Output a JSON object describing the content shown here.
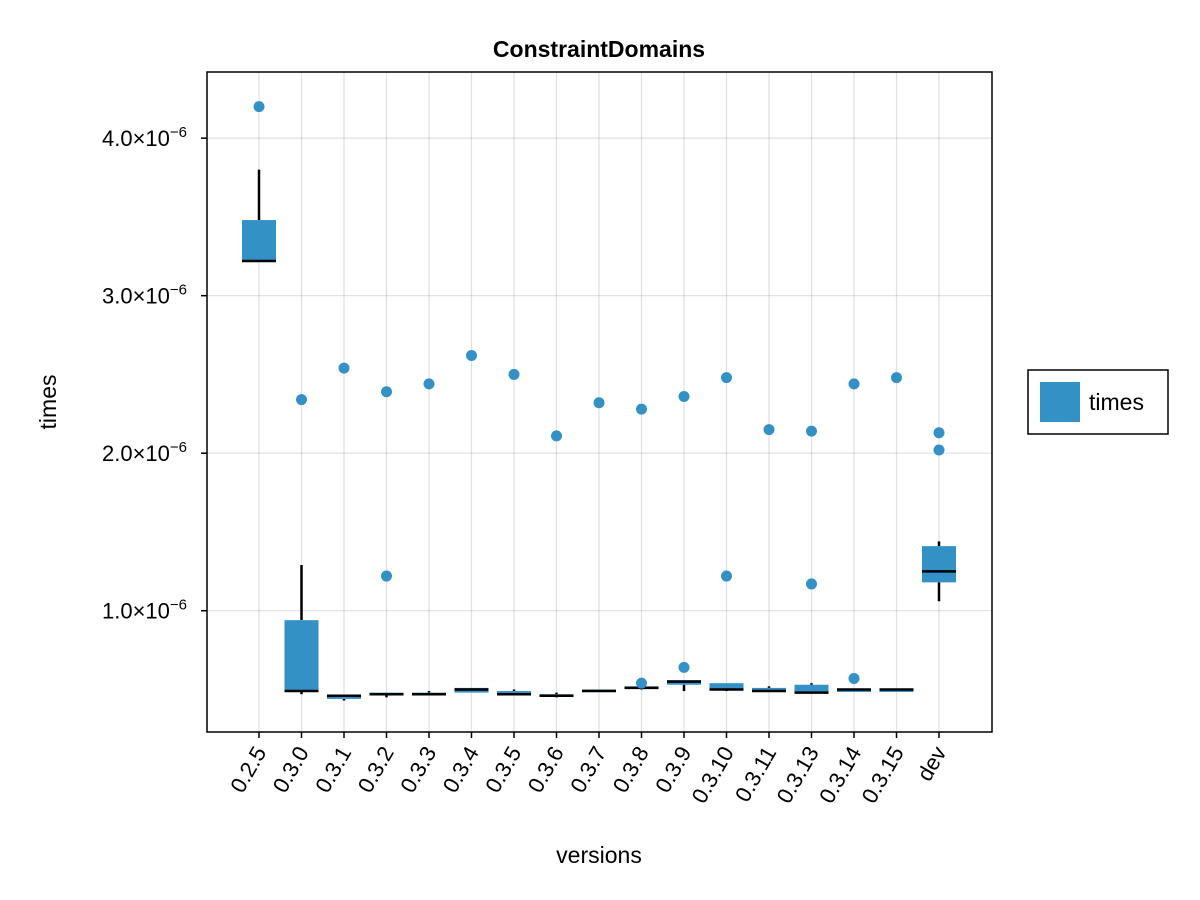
{
  "chart_data": {
    "type": "boxplot",
    "title": "ConstraintDomains",
    "xlabel": "versions",
    "ylabel": "times",
    "categories": [
      "0.2.5",
      "0.3.0",
      "0.3.1",
      "0.3.2",
      "0.3.3",
      "0.3.4",
      "0.3.5",
      "0.3.6",
      "0.3.7",
      "0.3.8",
      "0.3.9",
      "0.3.10",
      "0.3.11",
      "0.3.13",
      "0.3.14",
      "0.3.15",
      "dev"
    ],
    "yticks": [
      1e-06,
      2e-06,
      3e-06,
      4e-06
    ],
    "ytick_labels": [
      {
        "mantissa": "1.0×10",
        "exp": "−6"
      },
      {
        "mantissa": "2.0×10",
        "exp": "−6"
      },
      {
        "mantissa": "3.0×10",
        "exp": "−6"
      },
      {
        "mantissa": "4.0×10",
        "exp": "−6"
      }
    ],
    "ylim": [
      2.3e-07,
      4.42e-06
    ],
    "grid": true,
    "legend": {
      "position": "right",
      "entries": [
        {
          "label": "times",
          "color": "#3391c6"
        }
      ]
    },
    "colors": {
      "box": "#3391c6",
      "median": "#000000",
      "whisker": "#000000",
      "outlier": "#3391c6",
      "grid": "#e6e6e6"
    },
    "series": [
      {
        "name": "times",
        "boxes": [
          {
            "q1": 3.22e-06,
            "median": 3.22e-06,
            "q3": 3.48e-06,
            "whisker_low": 3.22e-06,
            "whisker_high": 3.8e-06,
            "outliers": [
              4.2e-06
            ]
          },
          {
            "q1": 4.9e-07,
            "median": 4.9e-07,
            "q3": 9.4e-07,
            "whisker_low": 4.7e-07,
            "whisker_high": 1.29e-06,
            "outliers": [
              2.34e-06
            ]
          },
          {
            "q1": 4.4e-07,
            "median": 4.6e-07,
            "q3": 4.6e-07,
            "whisker_low": 4.3e-07,
            "whisker_high": 4.6e-07,
            "outliers": [
              2.54e-06
            ]
          },
          {
            "q1": 4.7e-07,
            "median": 4.7e-07,
            "q3": 4.8e-07,
            "whisker_low": 4.5e-07,
            "whisker_high": 4.8e-07,
            "outliers": [
              2.39e-06,
              1.22e-06
            ]
          },
          {
            "q1": 4.7e-07,
            "median": 4.7e-07,
            "q3": 4.8e-07,
            "whisker_low": 4.7e-07,
            "whisker_high": 4.9e-07,
            "outliers": [
              2.44e-06
            ]
          },
          {
            "q1": 4.8e-07,
            "median": 5e-07,
            "q3": 5.1e-07,
            "whisker_low": 4.8e-07,
            "whisker_high": 5.1e-07,
            "outliers": [
              2.62e-06
            ]
          },
          {
            "q1": 4.7e-07,
            "median": 4.7e-07,
            "q3": 4.9e-07,
            "whisker_low": 4.7e-07,
            "whisker_high": 5e-07,
            "outliers": [
              2.5e-06
            ]
          },
          {
            "q1": 4.6e-07,
            "median": 4.6e-07,
            "q3": 4.7e-07,
            "whisker_low": 4.5e-07,
            "whisker_high": 4.8e-07,
            "outliers": [
              2.11e-06
            ]
          },
          {
            "q1": 4.9e-07,
            "median": 4.9e-07,
            "q3": 5e-07,
            "whisker_low": 4.9e-07,
            "whisker_high": 5e-07,
            "outliers": [
              2.32e-06
            ]
          },
          {
            "q1": 5.1e-07,
            "median": 5.1e-07,
            "q3": 5.2e-07,
            "whisker_low": 5e-07,
            "whisker_high": 5.2e-07,
            "outliers": [
              2.28e-06,
              5.4e-07
            ]
          },
          {
            "q1": 5.3e-07,
            "median": 5.5e-07,
            "q3": 5.6e-07,
            "whisker_low": 4.9e-07,
            "whisker_high": 5.6e-07,
            "outliers": [
              2.36e-06,
              6.4e-07
            ]
          },
          {
            "q1": 5e-07,
            "median": 5e-07,
            "q3": 5.4e-07,
            "whisker_low": 4.9e-07,
            "whisker_high": 5.4e-07,
            "outliers": [
              2.48e-06,
              1.22e-06
            ]
          },
          {
            "q1": 4.9e-07,
            "median": 4.9e-07,
            "q3": 5.1e-07,
            "whisker_low": 4.9e-07,
            "whisker_high": 5.2e-07,
            "outliers": [
              2.15e-06
            ]
          },
          {
            "q1": 4.8e-07,
            "median": 4.8e-07,
            "q3": 5.3e-07,
            "whisker_low": 4.8e-07,
            "whisker_high": 5.4e-07,
            "outliers": [
              2.14e-06,
              1.17e-06
            ]
          },
          {
            "q1": 4.9e-07,
            "median": 5e-07,
            "q3": 5e-07,
            "whisker_low": 4.9e-07,
            "whisker_high": 5e-07,
            "outliers": [
              2.44e-06,
              5.7e-07
            ]
          },
          {
            "q1": 4.9e-07,
            "median": 5e-07,
            "q3": 5e-07,
            "whisker_low": 4.9e-07,
            "whisker_high": 5e-07,
            "outliers": [
              2.48e-06
            ]
          },
          {
            "q1": 1.18e-06,
            "median": 1.25e-06,
            "q3": 1.41e-06,
            "whisker_low": 1.06e-06,
            "whisker_high": 1.44e-06,
            "outliers": [
              2.13e-06,
              2.02e-06
            ]
          }
        ]
      }
    ]
  }
}
